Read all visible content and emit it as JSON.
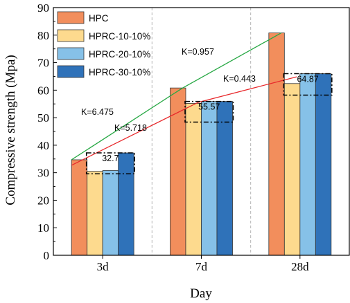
{
  "chart_data": {
    "type": "bar",
    "categories": [
      "3d",
      "7d",
      "28d"
    ],
    "series": [
      {
        "name": "HPC",
        "values": [
          34.7,
          60.8,
          80.8
        ],
        "color": "#F28E5C"
      },
      {
        "name": "HPRC-10-10%",
        "values": [
          30.5,
          55.2,
          62.4
        ],
        "color": "#FDDA8E"
      },
      {
        "name": "HPRC-20-10%",
        "values": [
          30.8,
          55.9,
          66.0
        ],
        "color": "#86C1E8"
      },
      {
        "name": "HPRC-30-10%",
        "values": [
          37.2,
          55.9,
          66.0
        ],
        "color": "#2F72B9"
      }
    ],
    "xlabel": "Day",
    "ylabel": "Compressive strength (Mpa)",
    "ylim": [
      0,
      90
    ],
    "yticks": [
      0,
      10,
      20,
      30,
      40,
      50,
      60,
      70,
      80,
      90
    ],
    "legend_position": "top-left",
    "grid": "vertical dashed separators between groups",
    "trend_lines": [
      {
        "color": "#27A844",
        "points": [
          [
            "3d",
            34.7
          ],
          [
            "7d",
            60.8
          ],
          [
            "28d",
            80.8
          ]
        ]
      },
      {
        "color": "#E8282B",
        "points": [
          [
            "3d",
            32.7
          ],
          [
            "7d",
            55.57
          ],
          [
            "28d",
            64.87
          ]
        ]
      }
    ],
    "range_boxes": [
      {
        "category": "3d",
        "low": 29.6,
        "high": 37.2,
        "label": "32.7"
      },
      {
        "category": "7d",
        "low": 48.4,
        "high": 55.9,
        "label": "55.57"
      },
      {
        "category": "28d",
        "low": 58.2,
        "high": 66.0,
        "label": "64.87"
      }
    ],
    "annotations": [
      "K=6.475",
      "K=5.718",
      "K=0.957",
      "K=0.443"
    ]
  }
}
